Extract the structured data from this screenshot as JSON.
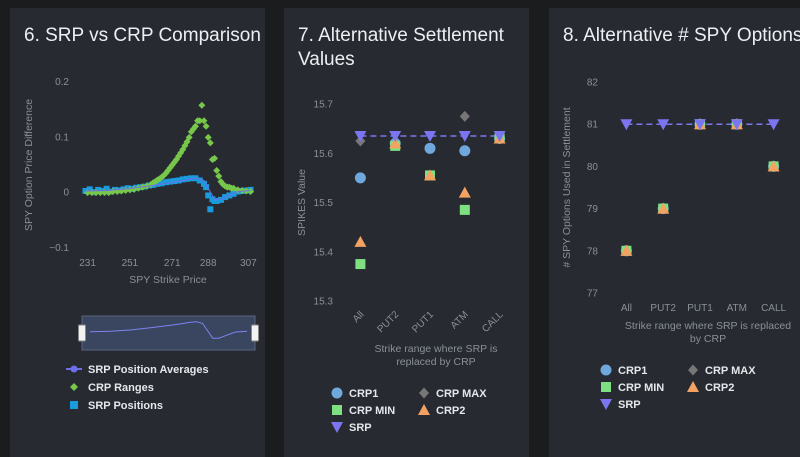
{
  "colors": {
    "background": "#1b1c1e",
    "panel": "#272a30",
    "crp1": "#6fa8dc",
    "crp_min": "#7ee081",
    "srp": "#7b76f0",
    "crp_max": "#777777",
    "crp2": "#f4a261",
    "crp_ranges": "#77c74a",
    "srp_positions": "#1a9bdd",
    "srp_avg": "#6e6ee8"
  },
  "panels": [
    {
      "title": "6. SRP vs CRP Comparison"
    },
    {
      "title": "7. Alternative Settlement Values"
    },
    {
      "title": "8. Alternative # SPY Options"
    }
  ],
  "chart_data": [
    {
      "type": "scatter",
      "title": "6. SRP vs CRP Comparison",
      "xlabel": "SPY Strike Price",
      "ylabel": "SPY Option Price Difference",
      "xlim": [
        226,
        312
      ],
      "ylim": [
        -0.1,
        0.2
      ],
      "x_ticks": [
        "231",
        "251",
        "271",
        "288",
        "307"
      ],
      "y_ticks": [
        "0.2",
        "0.1",
        "0",
        "−0.1"
      ],
      "legend": [
        "SRP Position Averages",
        "CRP Ranges",
        "SRP Positions"
      ],
      "legend_placement": "bottom",
      "range_selector": true,
      "series": [
        {
          "name": "CRP Ranges",
          "x": [
            231,
            233,
            235,
            237,
            239,
            241,
            243,
            245,
            247,
            249,
            251,
            253,
            255,
            257,
            259,
            261,
            262,
            263,
            264,
            265,
            266,
            267,
            268,
            269,
            270,
            271,
            272,
            273,
            274,
            275,
            276,
            277,
            278,
            279,
            280,
            281,
            282,
            283,
            284,
            285,
            286,
            287,
            288,
            289,
            290,
            291,
            292,
            293,
            294,
            295,
            296,
            297,
            298,
            299,
            300,
            302,
            304,
            306,
            308
          ],
          "y": [
            0,
            0,
            0,
            0,
            0,
            0,
            0.002,
            0.002,
            0.003,
            0.004,
            0.005,
            0.006,
            0.008,
            0.01,
            0.012,
            0.015,
            0.018,
            0.02,
            0.023,
            0.025,
            0.028,
            0.031,
            0.035,
            0.04,
            0.045,
            0.05,
            0.055,
            0.06,
            0.066,
            0.072,
            0.078,
            0.085,
            0.092,
            0.1,
            0.11,
            0.115,
            0.12,
            0.13,
            0.13,
            0.158,
            0.13,
            0.12,
            0.1,
            0.09,
            0.06,
            0.062,
            0.04,
            0.03,
            0.02,
            0.015,
            0.012,
            0.01,
            0.01,
            0.008,
            0.008,
            0.005,
            0.004,
            0.003,
            0.002
          ]
        },
        {
          "name": "SRP Positions",
          "x": [
            230,
            232,
            234,
            236,
            238,
            240,
            242,
            244,
            246,
            248,
            250,
            252,
            254,
            256,
            258,
            260,
            262,
            264,
            266,
            268,
            270,
            272,
            274,
            276,
            278,
            280,
            282,
            284,
            286,
            287,
            288,
            289,
            290,
            291,
            292,
            294,
            296,
            298,
            300,
            302,
            304,
            306,
            308
          ],
          "y": [
            0.003,
            0.006,
            0.001,
            0.005,
            0.003,
            0.007,
            0.002,
            0.005,
            0.004,
            0.006,
            0.008,
            0.007,
            0.009,
            0.01,
            0.011,
            0.013,
            0.014,
            0.016,
            0.017,
            0.019,
            0.02,
            0.021,
            0.022,
            0.024,
            0.025,
            0.026,
            0.026,
            0.022,
            0.016,
            0.01,
            -0.005,
            -0.03,
            -0.012,
            -0.015,
            -0.015,
            -0.013,
            -0.008,
            -0.005,
            -0.002,
            0.002,
            0.003,
            0.004,
            0.005
          ]
        },
        {
          "name": "SRP Position Averages",
          "x": [
            230,
            240,
            250,
            260,
            270,
            275,
            280,
            283,
            286,
            288,
            291,
            294,
            298,
            302,
            308
          ],
          "y": [
            0.003,
            0.004,
            0.007,
            0.012,
            0.018,
            0.021,
            0.025,
            0.026,
            0.022,
            0.008,
            -0.012,
            -0.012,
            -0.005,
            0.002,
            0.004
          ]
        }
      ]
    },
    {
      "type": "scatter",
      "title": "7. Alternative Settlement Values",
      "xlabel": "Strike range where SRP is replaced by CRP",
      "ylabel": "SPIKES Value",
      "categories": [
        "All",
        "PUT2",
        "PUT1",
        "ATM",
        "CALL"
      ],
      "ylim": [
        15.3,
        15.7
      ],
      "y_ticks": [
        "15.7",
        "15.6",
        "15.5",
        "15.4",
        "15.3"
      ],
      "legend_placement": "bottom",
      "series": [
        {
          "name": "CRP1",
          "values": [
            15.55,
            15.62,
            15.61,
            15.605,
            15.63
          ]
        },
        {
          "name": "CRP MAX",
          "values": [
            15.625,
            15.62,
            15.61,
            15.675,
            15.63
          ]
        },
        {
          "name": "CRP MIN",
          "values": [
            15.375,
            15.615,
            15.555,
            15.485,
            15.63
          ]
        },
        {
          "name": "CRP2",
          "values": [
            15.42,
            15.62,
            15.555,
            15.52,
            15.63
          ]
        },
        {
          "name": "SRP",
          "values": [
            15.635,
            15.635,
            15.635,
            15.635,
            15.635
          ]
        }
      ]
    },
    {
      "type": "scatter",
      "title": "8. Alternative # SPY Options",
      "xlabel": "Strike range where SRP is replaced by CRP",
      "ylabel": "# SPY Options Used in Settlement",
      "categories": [
        "All",
        "PUT2",
        "PUT1",
        "ATM",
        "CALL"
      ],
      "ylim": [
        77,
        82
      ],
      "y_ticks": [
        "82",
        "81",
        "80",
        "79",
        "78",
        "77"
      ],
      "legend_placement": "bottom",
      "series": [
        {
          "name": "CRP1",
          "values": [
            78,
            79,
            81,
            81,
            80
          ]
        },
        {
          "name": "CRP MAX",
          "values": [
            78,
            79,
            81,
            81,
            80
          ]
        },
        {
          "name": "CRP MIN",
          "values": [
            78,
            79,
            81,
            81,
            80
          ]
        },
        {
          "name": "CRP2",
          "values": [
            78,
            79,
            81,
            81,
            80
          ]
        },
        {
          "name": "SRP",
          "values": [
            81,
            81,
            81,
            81,
            81
          ]
        }
      ]
    }
  ]
}
